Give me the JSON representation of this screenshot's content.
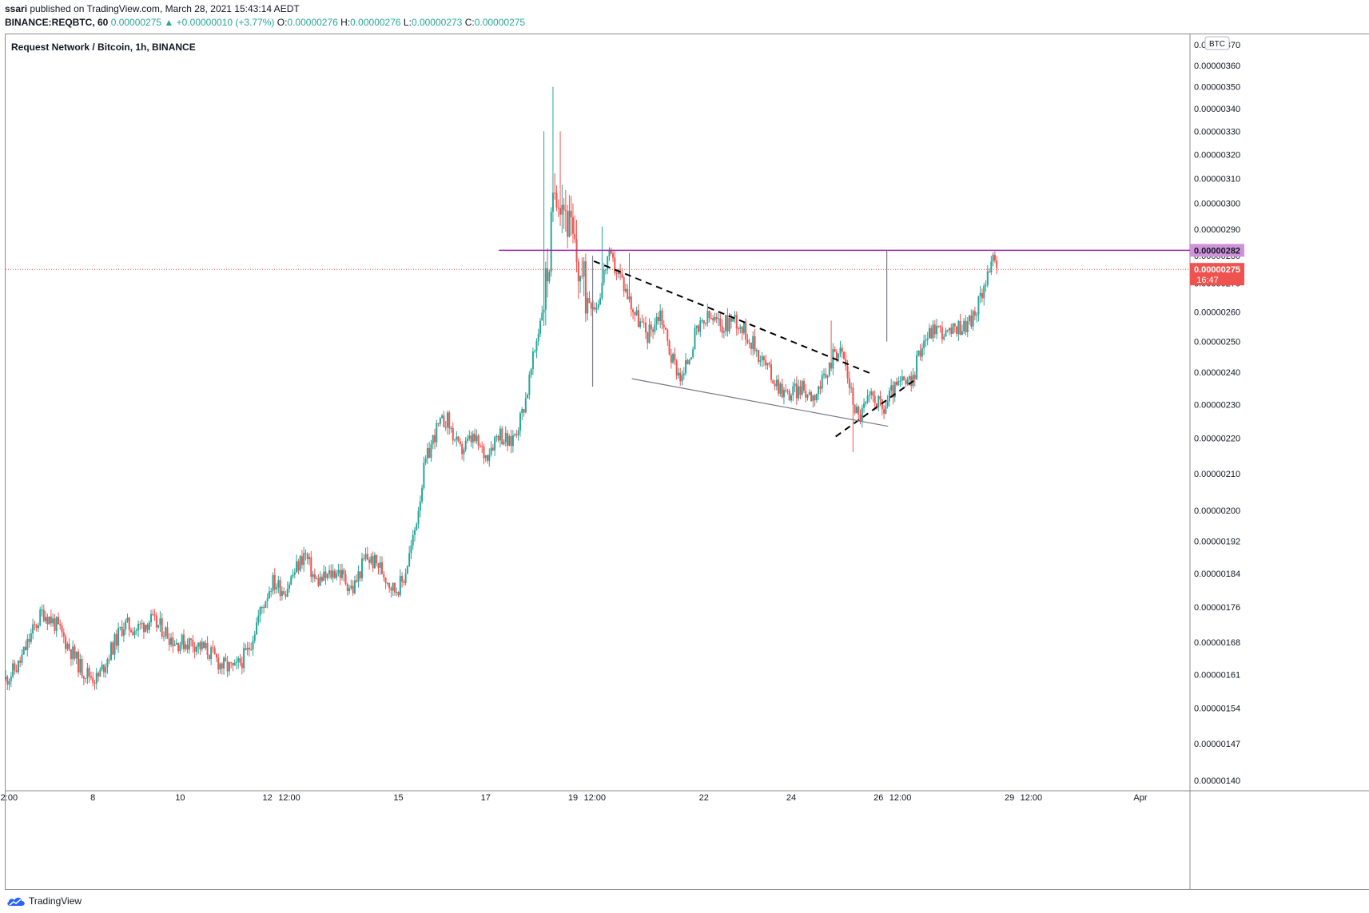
{
  "header": {
    "author": "ssari",
    "published": " published on TradingView.com, March 28, 2021 15:43:14 AEDT",
    "symbol": "BINANCE:REQBTC, 60",
    "change": " 0.00000275 ▲ +0.00000010 (+3.77%)",
    "o_label": "O:",
    "o_value": "0.00000276",
    "h_label": "H:",
    "h_value": "0.00000276",
    "l_label": "L:",
    "l_value": "0.00000273",
    "c_label": "C:",
    "c_value": "0.00000275"
  },
  "footer": {
    "brand": "TradingView"
  },
  "colors": {
    "up": "#26a69a",
    "down": "#ef5350",
    "resistance": "#9c27b0",
    "resistance_label": "#ce93d8",
    "last_price": "#ef5350",
    "trendline": "#787b86",
    "dashed": "#000000",
    "axis_text": "#131722"
  },
  "chart_data": {
    "type": "candlestick",
    "title": "Request Network / Bitcoin, 1h, BINANCE",
    "currency": "BTC",
    "y_scale": "log",
    "ylim": [
      1.4e-06,
      3.7e-06
    ],
    "yticks": [
      "0.00000370",
      "0.00000360",
      "0.00000350",
      "0.00000340",
      "0.00000330",
      "0.00000320",
      "0.00000310",
      "0.00000300",
      "0.00000290",
      "0.00000280",
      "0.00000270",
      "0.00000260",
      "0.00000250",
      "0.00000240",
      "0.00000230",
      "0.00000220",
      "0.00000210",
      "0.00000200",
      "0.00000192",
      "0.00000184",
      "0.00000176",
      "0.00000168",
      "0.00000161",
      "0.00000154",
      "0.00000147",
      "0.00000140"
    ],
    "xticks": [
      {
        "label": "2:00",
        "day": 6.08
      },
      {
        "label": "8",
        "day": 8.0
      },
      {
        "label": "10",
        "day": 10.0
      },
      {
        "label": "12",
        "day": 12.0
      },
      {
        "label": "12:00",
        "day": 12.5
      },
      {
        "label": "15",
        "day": 15.0
      },
      {
        "label": "17",
        "day": 17.0
      },
      {
        "label": "19",
        "day": 19.0
      },
      {
        "label": "12:00",
        "day": 19.5
      },
      {
        "label": "22",
        "day": 22.0
      },
      {
        "label": "24",
        "day": 24.0
      },
      {
        "label": "26",
        "day": 26.0
      },
      {
        "label": "12:00",
        "day": 26.5
      },
      {
        "label": "29",
        "day": 29.0
      },
      {
        "label": "12:00",
        "day": 29.5
      },
      {
        "label": "Apr",
        "day": 32.0
      }
    ],
    "anchors": [
      [
        6.0,
        1.6e-06
      ],
      [
        6.3,
        1.63e-06
      ],
      [
        6.6,
        1.7e-06
      ],
      [
        6.85,
        1.75e-06
      ],
      [
        7.15,
        1.72e-06
      ],
      [
        7.45,
        1.67e-06
      ],
      [
        7.75,
        1.62e-06
      ],
      [
        8.1,
        1.6e-06
      ],
      [
        8.4,
        1.66e-06
      ],
      [
        8.7,
        1.72e-06
      ],
      [
        9.0,
        1.71e-06
      ],
      [
        9.3,
        1.73e-06
      ],
      [
        9.6,
        1.71e-06
      ],
      [
        9.9,
        1.68e-06
      ],
      [
        10.3,
        1.68e-06
      ],
      [
        10.65,
        1.66e-06
      ],
      [
        10.95,
        1.63e-06
      ],
      [
        11.25,
        1.62e-06
      ],
      [
        11.55,
        1.66e-06
      ],
      [
        11.8,
        1.74e-06
      ],
      [
        12.1,
        1.82e-06
      ],
      [
        12.4,
        1.8e-06
      ],
      [
        12.6,
        1.84e-06
      ],
      [
        12.85,
        1.89e-06
      ],
      [
        13.1,
        1.82e-06
      ],
      [
        13.35,
        1.83e-06
      ],
      [
        13.6,
        1.85e-06
      ],
      [
        13.95,
        1.8e-06
      ],
      [
        14.25,
        1.88e-06
      ],
      [
        14.55,
        1.86e-06
      ],
      [
        14.9,
        1.8e-06
      ],
      [
        15.1,
        1.82e-06
      ],
      [
        15.35,
        1.93e-06
      ],
      [
        15.6,
        2.12e-06
      ],
      [
        15.85,
        2.22e-06
      ],
      [
        16.1,
        2.26e-06
      ],
      [
        16.4,
        2.16e-06
      ],
      [
        16.7,
        2.2e-06
      ],
      [
        17.0,
        2.15e-06
      ],
      [
        17.3,
        2.22e-06
      ],
      [
        17.55,
        2.18e-06
      ],
      [
        17.8,
        2.26e-06
      ],
      [
        17.95,
        2.34e-06
      ],
      [
        18.1,
        2.45e-06
      ],
      [
        18.3,
        2.62e-06
      ],
      [
        18.45,
        2.78e-06
      ],
      [
        18.6,
        3.1e-06
      ],
      [
        18.8,
        3e-06
      ],
      [
        19.05,
        2.8e-06
      ],
      [
        19.3,
        2.66e-06
      ],
      [
        19.55,
        2.62e-06
      ],
      [
        19.8,
        2.8e-06
      ],
      [
        20.1,
        2.72e-06
      ],
      [
        20.4,
        2.6e-06
      ],
      [
        20.7,
        2.52e-06
      ],
      [
        21.0,
        2.6e-06
      ],
      [
        21.25,
        2.45e-06
      ],
      [
        21.5,
        2.38e-06
      ],
      [
        21.8,
        2.52e-06
      ],
      [
        22.1,
        2.58e-06
      ],
      [
        22.4,
        2.55e-06
      ],
      [
        22.7,
        2.58e-06
      ],
      [
        23.0,
        2.52e-06
      ],
      [
        23.3,
        2.45e-06
      ],
      [
        23.6,
        2.38e-06
      ],
      [
        23.9,
        2.33e-06
      ],
      [
        24.2,
        2.35e-06
      ],
      [
        24.5,
        2.33e-06
      ],
      [
        24.8,
        2.38e-06
      ],
      [
        25.0,
        2.48e-06
      ],
      [
        25.2,
        2.45e-06
      ],
      [
        25.4,
        2.32e-06
      ],
      [
        25.55,
        2.26e-06
      ],
      [
        25.7,
        2.3e-06
      ],
      [
        25.9,
        2.33e-06
      ],
      [
        26.1,
        2.28e-06
      ],
      [
        26.3,
        2.34e-06
      ],
      [
        26.55,
        2.37e-06
      ],
      [
        26.75,
        2.36e-06
      ],
      [
        27.0,
        2.5e-06
      ],
      [
        27.3,
        2.55e-06
      ],
      [
        27.6,
        2.52e-06
      ],
      [
        27.85,
        2.55e-06
      ],
      [
        28.05,
        2.56e-06
      ],
      [
        28.25,
        2.6e-06
      ],
      [
        28.45,
        2.72e-06
      ],
      [
        28.6,
        2.78e-06
      ],
      [
        28.7,
        2.75e-06
      ]
    ],
    "spikes": [
      {
        "day": 18.55,
        "high": 3.5e-06
      },
      {
        "day": 18.35,
        "high": 3.3e-06
      },
      {
        "day": 18.7,
        "high": 3.3e-06
      },
      {
        "day": 19.65,
        "high": 2.91e-06
      },
      {
        "day": 20.3,
        "high": 2.81e-06
      },
      {
        "day": 25.4,
        "low": 2.16e-06
      },
      {
        "day": 19.0,
        "high": 3e-06
      },
      {
        "day": 24.9,
        "high": 2.57e-06
      }
    ],
    "resistance": {
      "value": "0.00000282",
      "from_day": 17.3
    },
    "last_price": {
      "value": "0.00000275",
      "countdown": "16:47"
    },
    "annotations": [
      {
        "type": "dashed",
        "points": [
          [
            19.48,
            2.78e-06
          ],
          [
            25.85,
            2.395e-06
          ]
        ]
      },
      {
        "type": "dashed",
        "points": [
          [
            25.02,
            2.205e-06
          ],
          [
            26.87,
            2.38e-06
          ]
        ]
      },
      {
        "type": "line",
        "points": [
          [
            20.35,
            2.38e-06
          ],
          [
            26.22,
            2.235e-06
          ]
        ]
      },
      {
        "type": "vline",
        "day": 19.45,
        "from": 2.355e-06,
        "to": 2.8e-06
      },
      {
        "type": "vline",
        "day": 26.19,
        "from": 2.5e-06,
        "to": 2.82e-06
      }
    ]
  }
}
